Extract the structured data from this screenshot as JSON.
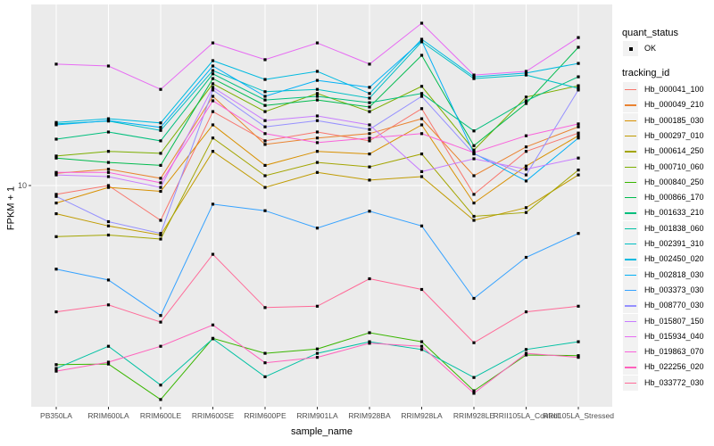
{
  "chart_data": {
    "type": "line",
    "xlabel": "sample_name",
    "ylabel": "FPKM + 1",
    "x_categories": [
      "PB350LA",
      "RRIM600LA",
      "RRIM600LE",
      "RRIM600SE",
      "RRIM600PE",
      "RRIM901LA",
      "RRIM928BA",
      "RRIM928LA",
      "RRIM928LE",
      "RRII105LA_Control",
      "RRII105LA_Stressed"
    ],
    "y_axis": {
      "scale": "log10",
      "ticks": [
        {
          "label": "10",
          "value": 10
        }
      ],
      "range": [
        1.0,
        60
      ]
    },
    "legend": {
      "quant_status_title": "quant_status",
      "ok_label": "OK",
      "tracking_title": "tracking_id"
    },
    "quant_status": "OK",
    "series": [
      {
        "tracking_id": "Hb_000041_100",
        "color": "#F8766D",
        "values": [
          9.1,
          10.0,
          6.9,
          22.0,
          16.1,
          17.7,
          16.1,
          22.7,
          9.1,
          14.4,
          17.5
        ]
      },
      {
        "tracking_id": "Hb_000049_210",
        "color": "#EA8331",
        "values": [
          11.4,
          11.9,
          10.8,
          25.9,
          15.5,
          16.6,
          17.4,
          20.4,
          11.1,
          15.1,
          18.7
        ]
      },
      {
        "tracking_id": "Hb_000185_030",
        "color": "#D89000",
        "values": [
          8.3,
          9.8,
          9.4,
          19.1,
          12.4,
          14.4,
          14.0,
          19.1,
          8.3,
          12.3,
          17.0
        ]
      },
      {
        "tracking_id": "Hb_000297_010",
        "color": "#C09B00",
        "values": [
          7.4,
          6.5,
          5.9,
          14.4,
          9.8,
          11.5,
          10.6,
          11.0,
          6.9,
          7.9,
          11.2
        ]
      },
      {
        "tracking_id": "Hb_000614_250",
        "color": "#A3A500",
        "values": [
          5.8,
          5.9,
          5.65,
          16.6,
          11.1,
          12.8,
          12.2,
          14.0,
          7.2,
          7.5,
          11.8
        ]
      },
      {
        "tracking_id": "Hb_000710_060",
        "color": "#7CAE00",
        "values": [
          13.7,
          14.4,
          14.1,
          29.6,
          22.0,
          26.7,
          22.0,
          28.8,
          14.6,
          25.7,
          29.0
        ]
      },
      {
        "tracking_id": "Hb_000840_250",
        "color": "#39B600",
        "values": [
          1.48,
          1.49,
          1.02,
          1.96,
          1.67,
          1.75,
          2.08,
          1.89,
          1.12,
          1.64,
          1.63
        ]
      },
      {
        "tracking_id": "Hb_000866_170",
        "color": "#00BB4E",
        "values": [
          13.4,
          12.8,
          12.4,
          31.3,
          23.5,
          24.9,
          23.1,
          40.1,
          15.3,
          24.0,
          43.7
        ]
      },
      {
        "tracking_id": "Hb_001633_210",
        "color": "#00BF7D",
        "values": [
          16.4,
          17.7,
          16.1,
          32.9,
          24.9,
          25.9,
          24.2,
          26.7,
          17.9,
          24.7,
          31.9
        ]
      },
      {
        "tracking_id": "Hb_001838_060",
        "color": "#00C1A3",
        "values": [
          1.42,
          1.8,
          1.19,
          1.95,
          1.3,
          1.67,
          1.89,
          1.74,
          1.29,
          1.74,
          1.89
        ]
      },
      {
        "tracking_id": "Hb_002391_310",
        "color": "#00BFC4",
        "values": [
          19.3,
          19.9,
          18.0,
          34.1,
          27.2,
          27.9,
          25.4,
          46.3,
          31.3,
          32.5,
          28.2
        ]
      },
      {
        "tracking_id": "Hb_002450_020",
        "color": "#00BAE0",
        "values": [
          19.6,
          20.4,
          19.5,
          37.9,
          31.0,
          33.8,
          26.7,
          47.6,
          31.9,
          33.2,
          36.8
        ]
      },
      {
        "tracking_id": "Hb_002818_030",
        "color": "#00B0F6",
        "values": [
          19.1,
          20.0,
          18.6,
          35.8,
          25.9,
          30.7,
          28.5,
          46.8,
          14.1,
          10.5,
          16.6
        ]
      },
      {
        "tracking_id": "Hb_003373_030",
        "color": "#35A2FF",
        "values": [
          4.1,
          3.65,
          2.5,
          8.2,
          7.65,
          6.35,
          7.6,
          6.5,
          3.0,
          4.65,
          6.0
        ]
      },
      {
        "tracking_id": "Hb_008770_030",
        "color": "#9590FF",
        "values": [
          8.9,
          6.8,
          6.0,
          27.7,
          18.7,
          20.0,
          18.2,
          25.9,
          14.0,
          11.2,
          27.7
        ]
      },
      {
        "tracking_id": "Hb_015807_150",
        "color": "#C77CFF",
        "values": [
          11.2,
          11.0,
          9.8,
          28.5,
          20.0,
          21.0,
          19.1,
          11.6,
          13.3,
          11.9,
          13.4
        ]
      },
      {
        "tracking_id": "Hb_015934_040",
        "color": "#E76BF3",
        "values": [
          36.5,
          35.8,
          27.9,
          45.8,
          38.3,
          45.8,
          36.5,
          56.5,
          32.5,
          33.8,
          48.5
        ]
      },
      {
        "tracking_id": "Hb_019863_070",
        "color": "#FA62DB",
        "values": [
          11.5,
          11.5,
          10.3,
          24.7,
          17.4,
          15.8,
          16.6,
          17.4,
          14.2,
          17.0,
          19.3
        ]
      },
      {
        "tracking_id": "Hb_022256_020",
        "color": "#FF62BC",
        "values": [
          1.38,
          1.52,
          1.8,
          2.26,
          1.51,
          1.6,
          1.86,
          1.8,
          1.09,
          1.67,
          1.6
        ]
      },
      {
        "tracking_id": "Hb_033772_030",
        "color": "#FF6A98",
        "values": [
          2.6,
          2.8,
          2.33,
          4.8,
          2.72,
          2.76,
          3.7,
          3.3,
          1.87,
          2.6,
          2.76
        ]
      }
    ]
  },
  "style": {
    "panel_bg": "#EBEBEB",
    "grid_color": "#FFFFFF",
    "marker_color": "#000000",
    "key_bg": "#F2F2F2",
    "tick_color": "#333333"
  }
}
